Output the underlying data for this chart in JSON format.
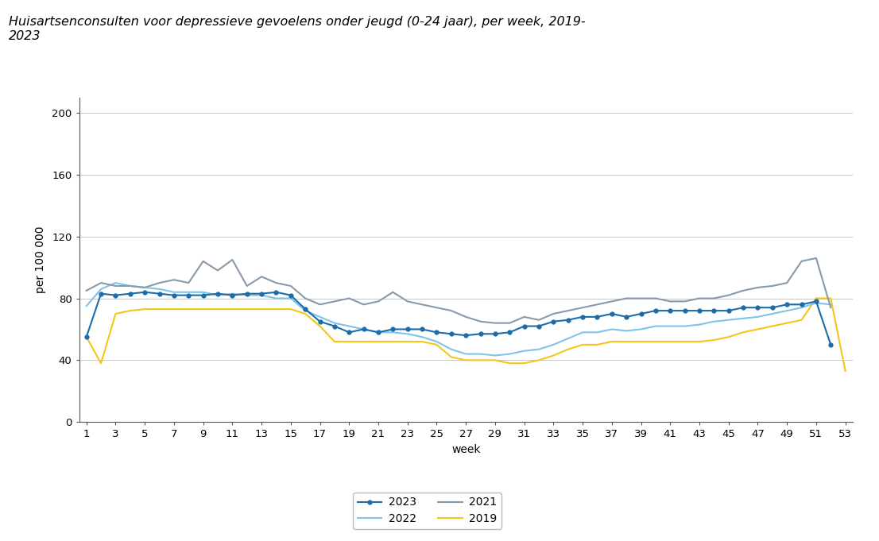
{
  "title": "Huisartsenconsulten voor depressieve gevoelens onder jeugd (0-24 jaar), per week, 2019-\n2023",
  "xlabel": "week",
  "ylabel": "per 100 000",
  "ylim": [
    0,
    210
  ],
  "yticks": [
    0,
    40,
    80,
    120,
    160,
    200
  ],
  "xticks": [
    1,
    3,
    5,
    7,
    9,
    11,
    13,
    15,
    17,
    19,
    21,
    23,
    25,
    27,
    29,
    31,
    33,
    35,
    37,
    39,
    41,
    43,
    45,
    47,
    49,
    51,
    53
  ],
  "series": {
    "2023": {
      "color": "#1b6ca8",
      "linewidth": 1.5,
      "marker": "o",
      "markersize": 4,
      "values": [
        55,
        83,
        82,
        83,
        84,
        83,
        82,
        82,
        82,
        83,
        82,
        83,
        83,
        84,
        82,
        73,
        65,
        62,
        58,
        60,
        58,
        60,
        60,
        60,
        58,
        57,
        56,
        57,
        57,
        58,
        62,
        62,
        65,
        66,
        68,
        68,
        70,
        68,
        70,
        72,
        72,
        72,
        72,
        72,
        72,
        74,
        74,
        74,
        76,
        76,
        78,
        50,
        null
      ]
    },
    "2022": {
      "color": "#7fc4e8",
      "linewidth": 1.5,
      "values": [
        75,
        86,
        90,
        88,
        87,
        86,
        84,
        84,
        84,
        82,
        83,
        82,
        82,
        80,
        80,
        72,
        68,
        64,
        62,
        60,
        58,
        58,
        57,
        55,
        52,
        47,
        44,
        44,
        43,
        44,
        46,
        47,
        50,
        54,
        58,
        58,
        60,
        59,
        60,
        62,
        62,
        62,
        63,
        65,
        66,
        67,
        68,
        70,
        72,
        74,
        77,
        76,
        null
      ]
    },
    "2021": {
      "color": "#8899aa",
      "linewidth": 1.5,
      "values": [
        85,
        90,
        88,
        88,
        87,
        90,
        92,
        90,
        104,
        98,
        105,
        88,
        94,
        90,
        88,
        80,
        76,
        78,
        80,
        76,
        78,
        84,
        78,
        76,
        74,
        72,
        68,
        65,
        64,
        64,
        68,
        66,
        70,
        72,
        74,
        76,
        78,
        80,
        80,
        80,
        78,
        78,
        80,
        80,
        82,
        85,
        87,
        88,
        90,
        104,
        106,
        74,
        null
      ]
    },
    "2019": {
      "color": "#f5c518",
      "linewidth": 1.5,
      "values": [
        55,
        38,
        70,
        72,
        73,
        73,
        73,
        73,
        73,
        73,
        73,
        73,
        73,
        73,
        73,
        70,
        62,
        52,
        52,
        52,
        52,
        52,
        52,
        52,
        50,
        42,
        40,
        40,
        40,
        38,
        38,
        40,
        43,
        47,
        50,
        50,
        52,
        52,
        52,
        52,
        52,
        52,
        52,
        53,
        55,
        58,
        60,
        62,
        64,
        66,
        80,
        80,
        33
      ]
    }
  },
  "background_color": "#ffffff",
  "grid_color": "#c8c8c8",
  "title_fontsize": 11.5,
  "axis_fontsize": 10,
  "tick_fontsize": 9.5,
  "legend_fontsize": 10
}
